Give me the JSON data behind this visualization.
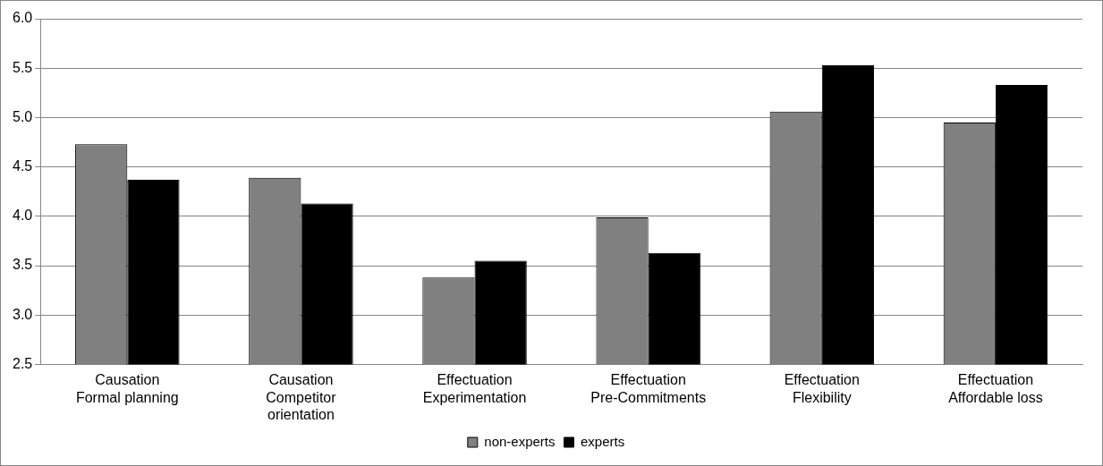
{
  "chart_data": {
    "type": "bar",
    "categories": [
      "Causation\nFormal planning",
      "Causation\nCompetitor\norientation",
      "Effectuation\nExperimentation",
      "Effectuation\nPre-Commitments",
      "Effectuation\nFlexibility",
      "Effectuation\nAffordable loss"
    ],
    "series": [
      {
        "name": "non-experts",
        "color": "#808080",
        "values": [
          4.73,
          4.39,
          3.38,
          3.99,
          5.06,
          4.95
        ]
      },
      {
        "name": "experts",
        "color": "#000000",
        "values": [
          4.37,
          4.13,
          3.55,
          3.63,
          5.53,
          5.33
        ]
      }
    ],
    "ylim": [
      2.5,
      6.0
    ],
    "yticks": [
      {
        "value": 2.5,
        "label": "2.5"
      },
      {
        "value": 3,
        "label": "3.0"
      },
      {
        "value": 3.5,
        "label": "3.5"
      },
      {
        "value": 4,
        "label": "4.0"
      },
      {
        "value": 4.5,
        "label": "4.5"
      },
      {
        "value": 5,
        "label": "5.0"
      },
      {
        "value": 5.5,
        "label": "5.5"
      },
      {
        "value": 6,
        "label": "6.0"
      }
    ],
    "grid": "y",
    "legend": "bottom"
  }
}
